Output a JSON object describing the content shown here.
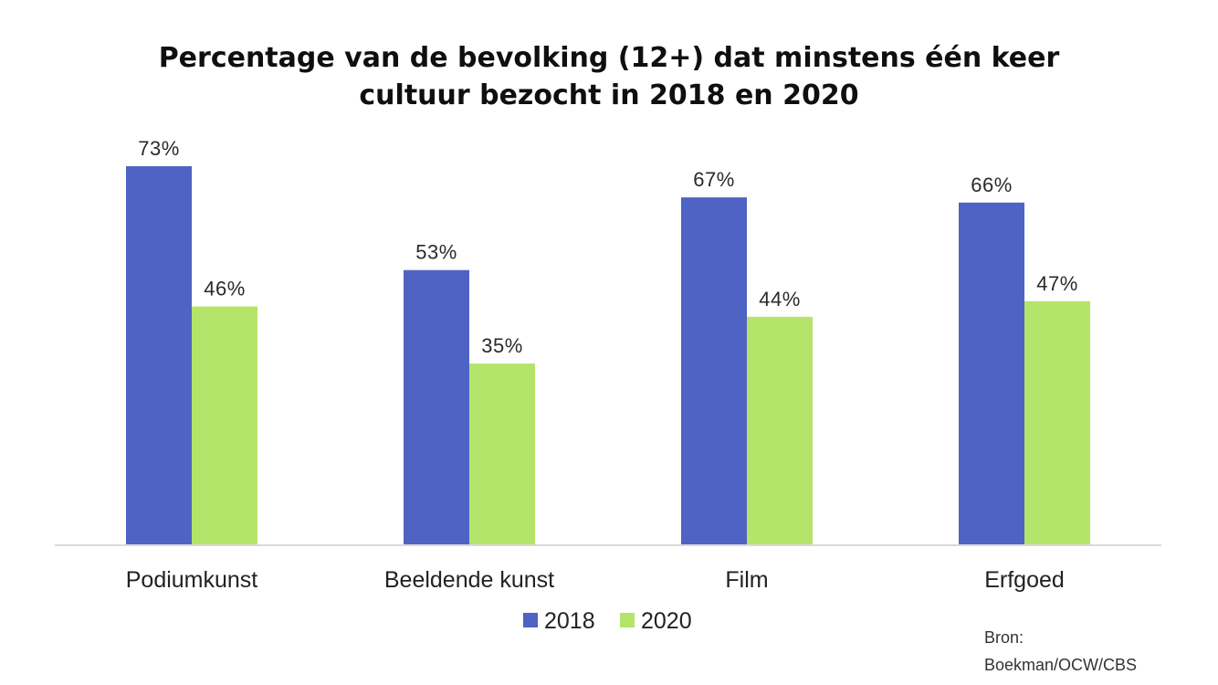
{
  "chart_data": {
    "type": "bar",
    "title_lines": [
      "Percentage van de bevolking (12+) dat minstens één keer",
      "cultuur bezocht in 2018 en 2020"
    ],
    "categories": [
      "Podiumkunst",
      "Beeldende kunst",
      "Film",
      "Erfgoed"
    ],
    "series": [
      {
        "name": "2018",
        "values": [
          73,
          53,
          67,
          66
        ],
        "labels": [
          "73%",
          "53%",
          "67%",
          "66%"
        ],
        "color": "#4F63C4"
      },
      {
        "name": "2020",
        "values": [
          46,
          35,
          44,
          47
        ],
        "labels": [
          "46%",
          "35%",
          "44%",
          "47%"
        ],
        "color": "#B5E46A"
      }
    ],
    "ylim": [
      0,
      73
    ],
    "grid": false,
    "legend_position": "bottom",
    "axis_color": "#D9D9D9"
  },
  "source": {
    "line1": "Bron:",
    "line2": "Boekman/OCW/CBS"
  }
}
